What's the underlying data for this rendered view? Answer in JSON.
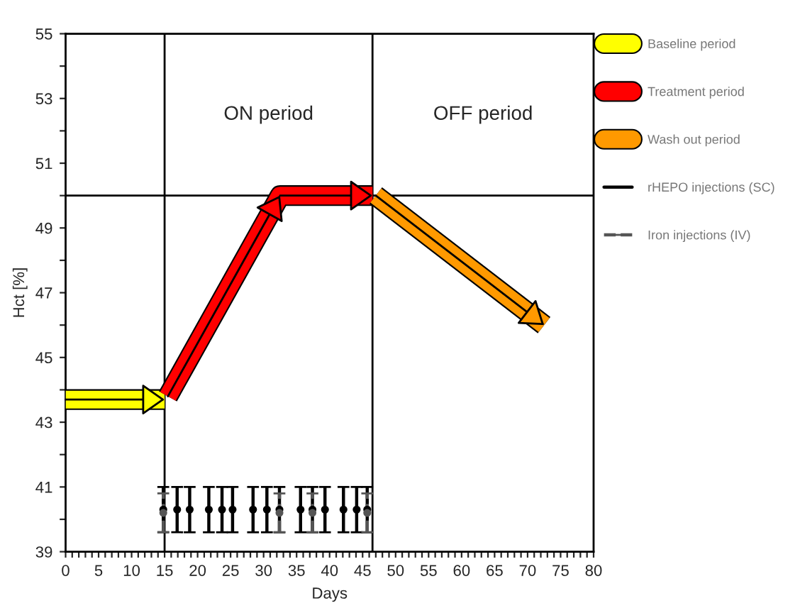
{
  "chart_data": {
    "type": "line",
    "xlabel": "Days",
    "ylabel": "Hct [%]",
    "xlim": [
      0,
      80
    ],
    "ylim": [
      39,
      55
    ],
    "xticks": [
      0,
      {
        "value": 1,
        "label": null
      },
      {
        "value": 2,
        "label": null
      },
      {
        "value": 3,
        "label": null
      },
      {
        "value": 4,
        "label": null
      },
      5,
      {
        "value": 6,
        "label": null
      },
      {
        "value": 7,
        "label": null
      },
      {
        "value": 8,
        "label": null
      },
      {
        "value": 9,
        "label": null
      },
      10,
      {
        "value": 11,
        "label": null
      },
      {
        "value": 12,
        "label": null
      },
      {
        "value": 13,
        "label": null
      },
      {
        "value": 14,
        "label": null
      },
      15,
      {
        "value": 16,
        "label": null
      },
      {
        "value": 17,
        "label": null
      },
      {
        "value": 18,
        "label": null
      },
      {
        "value": 19,
        "label": null
      },
      20,
      {
        "value": 21,
        "label": null
      },
      {
        "value": 22,
        "label": null
      },
      {
        "value": 23,
        "label": null
      },
      {
        "value": 24,
        "label": null
      },
      25,
      {
        "value": 26,
        "label": null
      },
      {
        "value": 27,
        "label": null
      },
      {
        "value": 28,
        "label": null
      },
      {
        "value": 29,
        "label": null
      },
      30,
      {
        "value": 31,
        "label": null
      },
      {
        "value": 32,
        "label": null
      },
      {
        "value": 33,
        "label": null
      },
      {
        "value": 34,
        "label": null
      },
      35,
      {
        "value": 36,
        "label": null
      },
      {
        "value": 37,
        "label": null
      },
      {
        "value": 38,
        "label": null
      },
      {
        "value": 39,
        "label": null
      },
      40,
      {
        "value": 41,
        "label": null
      },
      {
        "value": 42,
        "label": null
      },
      {
        "value": 43,
        "label": null
      },
      {
        "value": 44,
        "label": null
      },
      45,
      {
        "value": 46,
        "label": null
      },
      {
        "value": 47,
        "label": null
      },
      {
        "value": 48,
        "label": null
      },
      {
        "value": 49,
        "label": null
      },
      50,
      {
        "value": 51,
        "label": null
      },
      {
        "value": 52,
        "label": null
      },
      {
        "value": 53,
        "label": null
      },
      {
        "value": 54,
        "label": null
      },
      55,
      {
        "value": 56,
        "label": null
      },
      {
        "value": 57,
        "label": null
      },
      {
        "value": 58,
        "label": null
      },
      {
        "value": 59,
        "label": null
      },
      60,
      {
        "value": 61,
        "label": null
      },
      {
        "value": 62,
        "label": null
      },
      {
        "value": 63,
        "label": null
      },
      {
        "value": 64,
        "label": null
      },
      65,
      {
        "value": 66,
        "label": null
      },
      {
        "value": 67,
        "label": null
      },
      {
        "value": 68,
        "label": null
      },
      {
        "value": 69,
        "label": null
      },
      70,
      {
        "value": 71,
        "label": null
      },
      {
        "value": 72,
        "label": null
      },
      {
        "value": 73,
        "label": null
      },
      {
        "value": 74,
        "label": null
      },
      75,
      {
        "value": 76,
        "label": null
      },
      {
        "value": 77,
        "label": null
      },
      {
        "value": 78,
        "label": null
      },
      {
        "value": 79,
        "label": null
      },
      80
    ],
    "yticks": [
      39,
      {
        "value": 40,
        "label": null
      },
      41,
      {
        "value": 42,
        "label": null
      },
      43,
      {
        "value": 44,
        "label": null
      },
      45,
      {
        "value": 46,
        "label": null
      },
      47,
      {
        "value": 48,
        "label": null
      },
      49,
      {
        "value": 50,
        "label": null
      },
      51,
      {
        "value": 52,
        "label": null
      },
      53,
      {
        "value": 54,
        "label": null
      },
      55
    ],
    "grid": false,
    "legend": "right",
    "series": [
      {
        "name": "Baseline period",
        "color": "#ffff00",
        "x": [
          0,
          15
        ],
        "values": [
          43.7,
          43.7
        ]
      },
      {
        "name": "Treatment period",
        "color": "#ff0000",
        "x": [
          15.5,
          32.5,
          46.5
        ],
        "values": [
          43.8,
          50,
          50
        ]
      },
      {
        "name": "Wash out period",
        "color": "#ff9900",
        "x": [
          47,
          72.5
        ],
        "values": [
          50,
          46
        ]
      },
      {
        "name": "rHEPO injections (SC)",
        "type": "scatter",
        "color": "#000000",
        "marker": "circle",
        "line_style": "solid",
        "x": [
          14.8,
          16.9,
          18.8,
          21.7,
          23.7,
          25.3,
          28.4,
          30.5,
          32.4,
          35.6,
          37.4,
          39.3,
          42.1,
          44.1,
          45.7
        ],
        "values": [
          40.3,
          40.3,
          40.3,
          40.3,
          40.3,
          40.3,
          40.3,
          40.3,
          40.3,
          40.3,
          40.3,
          40.3,
          40.3,
          40.3,
          40.3
        ],
        "errors": [
          [
            39.6,
            41
          ],
          [
            39.6,
            41
          ],
          [
            39.6,
            41
          ],
          [
            39.6,
            41
          ],
          [
            39.6,
            41
          ],
          [
            39.6,
            41
          ],
          [
            39.6,
            41
          ],
          [
            39.6,
            41
          ],
          [
            39.6,
            41
          ],
          [
            39.6,
            41
          ],
          [
            39.6,
            41
          ],
          [
            39.6,
            41
          ],
          [
            39.6,
            41
          ],
          [
            39.6,
            41
          ],
          [
            39.6,
            41
          ]
        ]
      },
      {
        "name": "Iron injections (IV)",
        "type": "scatter",
        "color": "#555555",
        "marker": "circle",
        "line_style": "dashed",
        "x": [
          14.8,
          32.4,
          37.4,
          45.7
        ],
        "values": [
          40.2,
          40.2,
          40.2,
          40.2
        ],
        "errors": [
          [
            39.6,
            40.8
          ],
          [
            39.6,
            40.8
          ],
          [
            39.6,
            40.8
          ],
          [
            39.6,
            40.8
          ]
        ]
      }
    ],
    "ref_lines": [
      {
        "axis": "x",
        "value": 15,
        "color": "#000000"
      },
      {
        "axis": "x",
        "value": 46.5,
        "color": "#000000"
      },
      {
        "axis": "y",
        "value": 50,
        "color": "#000000"
      }
    ],
    "annotations": [
      "ON period",
      "OFF period"
    ]
  }
}
